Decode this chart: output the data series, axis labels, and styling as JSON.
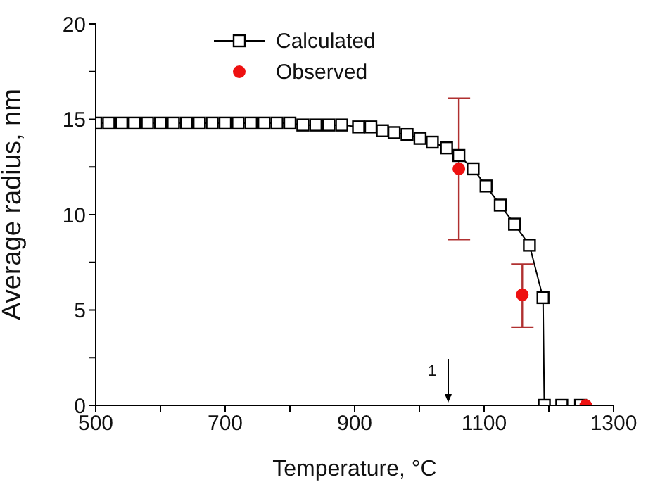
{
  "chart_data": {
    "type": "line",
    "xlabel": "Temperature, °C",
    "ylabel": "Average radius, nm",
    "xlim": [
      500,
      1300
    ],
    "xticks": [
      500,
      {
        "value": 600,
        "label": null
      },
      700,
      {
        "value": 800,
        "label": null
      },
      900,
      {
        "value": 1000,
        "label": null
      },
      1100,
      {
        "value": 1200,
        "label": null
      },
      1300
    ],
    "ylim": [
      0,
      20
    ],
    "yticks": [
      0,
      {
        "value": 2.5,
        "label": null
      },
      5,
      {
        "value": 7.5,
        "label": null
      },
      10,
      {
        "value": 12.5,
        "label": null
      },
      15,
      {
        "value": 17.5,
        "label": null
      },
      20
    ],
    "legend": "top",
    "grid": false,
    "series": [
      {
        "name": "Calculated",
        "marker": "square",
        "line_style": "solid",
        "color": "#000000",
        "x": [
          500,
          520,
          540,
          560,
          580,
          600,
          620,
          640,
          660,
          680,
          700,
          720,
          740,
          760,
          780,
          800,
          820,
          840,
          860,
          880,
          906,
          925,
          943,
          961,
          981,
          1001,
          1020,
          1042,
          1061,
          1083,
          1103,
          1125,
          1147,
          1170,
          1191,
          1193,
          1220,
          1249
        ],
        "values": [
          14.8,
          14.8,
          14.8,
          14.8,
          14.8,
          14.8,
          14.8,
          14.8,
          14.8,
          14.8,
          14.8,
          14.8,
          14.8,
          14.8,
          14.8,
          14.8,
          14.7,
          14.7,
          14.7,
          14.7,
          14.6,
          14.6,
          14.4,
          14.3,
          14.2,
          14.0,
          13.8,
          13.5,
          13.1,
          12.4,
          11.5,
          10.5,
          9.5,
          8.4,
          5.65,
          0,
          0,
          0
        ]
      },
      {
        "name": "Observed",
        "type": "scatter",
        "marker": "circle",
        "color": "#ee1111",
        "x": [
          1061,
          1159,
          1257
        ],
        "values": [
          12.4,
          5.8,
          0
        ],
        "errors": [
          [
            8.7,
            16.1
          ],
          [
            4.1,
            7.4
          ],
          null
        ]
      }
    ],
    "annotations": [
      "1"
    ]
  }
}
